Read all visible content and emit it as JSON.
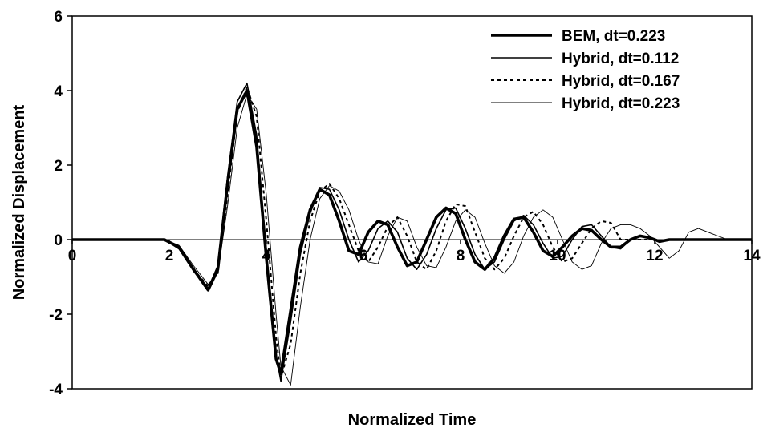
{
  "chart_data": {
    "type": "line",
    "title": "",
    "xlabel": "Normalized Time",
    "ylabel": "Normalized Displacement",
    "xlim": [
      0,
      14
    ],
    "ylim": [
      -4,
      6
    ],
    "xticks": [
      "0",
      "2",
      "4",
      "6",
      "8",
      "10",
      "12",
      "14"
    ],
    "yticks": [
      "-4",
      "-2",
      "0",
      "2",
      "4",
      "6"
    ],
    "grid": false,
    "legend_position": "top-right",
    "series": [
      {
        "name": "BEM, dt=0.223",
        "style": "thick-solid",
        "x": [
          0,
          1.5,
          1.9,
          2.2,
          2.5,
          2.8,
          3.0,
          3.2,
          3.4,
          3.6,
          3.8,
          4.0,
          4.2,
          4.3,
          4.5,
          4.7,
          4.9,
          5.1,
          5.3,
          5.5,
          5.7,
          5.9,
          6.1,
          6.3,
          6.5,
          6.7,
          6.9,
          7.1,
          7.3,
          7.5,
          7.7,
          7.9,
          8.1,
          8.3,
          8.5,
          8.7,
          8.9,
          9.1,
          9.3,
          9.5,
          9.7,
          9.9,
          10.1,
          10.3,
          10.5,
          10.7,
          10.9,
          11.1,
          11.3,
          11.5,
          11.7,
          11.9,
          12.1,
          12.3,
          12.5,
          12.7,
          12.9,
          13.1,
          13.3,
          13.5,
          13.7,
          14.0
        ],
        "y": [
          0,
          0,
          0,
          -0.2,
          -0.8,
          -1.35,
          -0.8,
          1.5,
          3.5,
          4.0,
          2.5,
          -0.5,
          -3.2,
          -3.6,
          -1.9,
          -0.2,
          0.8,
          1.35,
          1.2,
          0.5,
          -0.3,
          -0.4,
          0.2,
          0.5,
          0.4,
          -0.2,
          -0.7,
          -0.6,
          0.0,
          0.6,
          0.85,
          0.7,
          0.0,
          -0.6,
          -0.8,
          -0.5,
          0.1,
          0.55,
          0.6,
          0.2,
          -0.3,
          -0.45,
          -0.2,
          0.1,
          0.3,
          0.25,
          0.0,
          -0.2,
          -0.2,
          0.0,
          0.1,
          0.05,
          -0.05,
          0.0,
          0.0,
          0.0,
          0.0,
          0.0,
          0.0,
          0.0,
          0.0,
          0.0
        ]
      },
      {
        "name": "Hybrid, dt=0.112",
        "style": "medium-solid",
        "x": [
          0,
          1.5,
          1.9,
          2.2,
          2.5,
          2.8,
          3.0,
          3.2,
          3.4,
          3.6,
          3.8,
          4.0,
          4.2,
          4.3,
          4.5,
          4.7,
          4.9,
          5.1,
          5.3,
          5.5,
          5.7,
          5.9,
          6.1,
          6.3,
          6.5,
          6.7,
          6.9,
          7.1,
          7.3,
          7.5,
          7.7,
          7.9,
          8.1,
          8.3,
          8.5,
          8.7,
          8.9,
          9.1,
          9.3,
          9.5,
          9.7,
          9.9,
          10.1,
          10.3,
          10.5,
          10.7,
          10.9,
          11.1,
          11.3,
          11.5,
          11.7
        ],
        "y": [
          0,
          0,
          0,
          -0.25,
          -0.85,
          -1.3,
          -0.7,
          1.7,
          3.7,
          4.2,
          2.8,
          -0.3,
          -3.1,
          -3.8,
          -2.2,
          -0.4,
          0.7,
          1.4,
          1.35,
          0.8,
          0.0,
          -0.6,
          -0.3,
          0.3,
          0.5,
          0.2,
          -0.5,
          -0.8,
          -0.4,
          0.3,
          0.8,
          0.85,
          0.3,
          -0.4,
          -0.8,
          -0.6,
          0.0,
          0.5,
          0.65,
          0.4,
          -0.1,
          -0.5,
          -0.45,
          0.0,
          0.35,
          0.4,
          0.1,
          -0.2,
          -0.25,
          0.0,
          0.0
        ]
      },
      {
        "name": "Hybrid, dt=0.167",
        "style": "dotted",
        "x": [
          0,
          1.5,
          1.9,
          2.2,
          2.5,
          2.8,
          3.0,
          3.2,
          3.4,
          3.6,
          3.8,
          4.0,
          4.2,
          4.3,
          4.5,
          4.7,
          4.9,
          5.1,
          5.3,
          5.5,
          5.7,
          5.9,
          6.1,
          6.3,
          6.5,
          6.7,
          6.9,
          7.1,
          7.3,
          7.5,
          7.7,
          7.9,
          8.1,
          8.3,
          8.5,
          8.7,
          8.9,
          9.1,
          9.3,
          9.5,
          9.7,
          9.9,
          10.1,
          10.3,
          10.5,
          10.7,
          10.9,
          11.1,
          11.3,
          11.5,
          11.7,
          11.9
        ],
        "y": [
          0,
          0,
          0,
          -0.2,
          -0.8,
          -1.25,
          -0.9,
          1.2,
          3.4,
          4.1,
          3.3,
          0.5,
          -2.6,
          -3.7,
          -2.8,
          -0.9,
          0.5,
          1.3,
          1.5,
          1.1,
          0.4,
          -0.3,
          -0.6,
          -0.2,
          0.35,
          0.6,
          0.1,
          -0.6,
          -0.8,
          -0.3,
          0.5,
          0.95,
          0.9,
          0.2,
          -0.5,
          -0.8,
          -0.5,
          0.1,
          0.6,
          0.75,
          0.4,
          -0.2,
          -0.6,
          -0.5,
          -0.1,
          0.3,
          0.5,
          0.45,
          0.0,
          0.0,
          0.0,
          0.0
        ]
      },
      {
        "name": "Hybrid, dt=0.223",
        "style": "thin-solid",
        "x": [
          0,
          1.5,
          1.9,
          2.2,
          2.5,
          2.8,
          3.0,
          3.2,
          3.4,
          3.6,
          3.8,
          4.0,
          4.2,
          4.3,
          4.5,
          4.7,
          4.9,
          5.1,
          5.3,
          5.5,
          5.7,
          5.9,
          6.1,
          6.3,
          6.5,
          6.7,
          6.9,
          7.1,
          7.3,
          7.5,
          7.7,
          7.9,
          8.1,
          8.3,
          8.5,
          8.7,
          8.9,
          9.1,
          9.3,
          9.5,
          9.7,
          9.9,
          10.1,
          10.3,
          10.5,
          10.7,
          10.9,
          11.1,
          11.3,
          11.5,
          11.7,
          11.9,
          12.1,
          12.3,
          12.5,
          12.7,
          12.9,
          13.1,
          13.3,
          13.5,
          13.7,
          14.0
        ],
        "y": [
          0,
          0,
          0,
          -0.15,
          -0.7,
          -1.2,
          -0.9,
          0.9,
          3.0,
          3.9,
          3.5,
          1.2,
          -2.0,
          -3.4,
          -3.9,
          -1.8,
          0.0,
          1.1,
          1.45,
          1.3,
          0.8,
          0.0,
          -0.6,
          -0.65,
          0.1,
          0.6,
          0.5,
          -0.2,
          -0.7,
          -0.75,
          -0.2,
          0.5,
          0.8,
          0.6,
          -0.1,
          -0.7,
          -0.9,
          -0.6,
          0.1,
          0.6,
          0.8,
          0.6,
          0.0,
          -0.6,
          -0.8,
          -0.7,
          -0.1,
          0.3,
          0.4,
          0.4,
          0.3,
          0.1,
          -0.2,
          -0.5,
          -0.3,
          0.2,
          0.3,
          0.2,
          0.1,
          0.0,
          0.0,
          0.0
        ]
      }
    ]
  }
}
